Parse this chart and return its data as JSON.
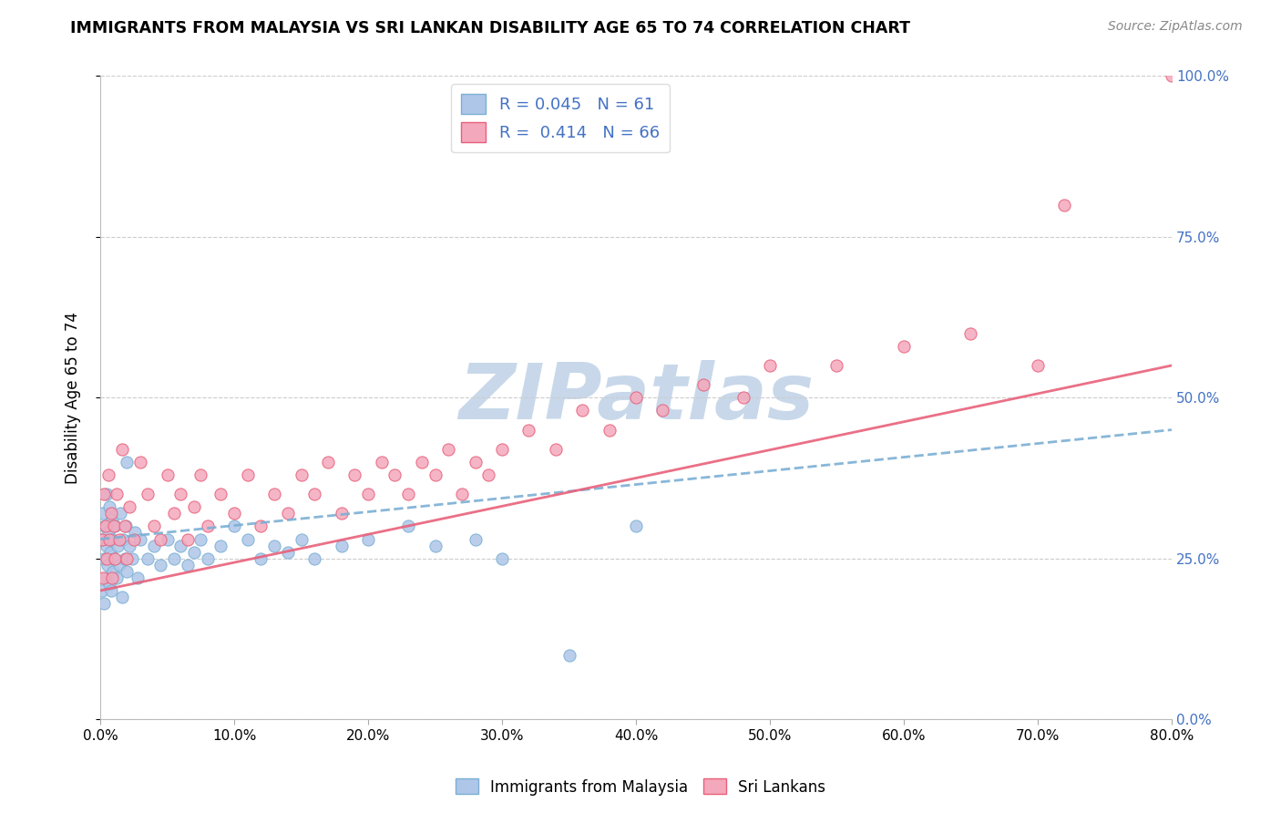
{
  "title": "IMMIGRANTS FROM MALAYSIA VS SRI LANKAN DISABILITY AGE 65 TO 74 CORRELATION CHART",
  "source": "Source: ZipAtlas.com",
  "xlim": [
    0.0,
    80.0
  ],
  "ylim": [
    0.0,
    100.0
  ],
  "ylabel": "Disability Age 65 to 74",
  "malaysia_R": 0.045,
  "malaysia_N": 61,
  "srilanka_R": 0.414,
  "srilanka_N": 66,
  "malaysia_color": "#aec6e8",
  "srilanka_color": "#f4a8bc",
  "malaysia_line_color": "#7bafd4",
  "srilanka_line_color": "#e8607a",
  "watermark": "ZIPatlas",
  "watermark_color": "#c8d8ea",
  "legend_label_malaysia": "Immigrants from Malaysia",
  "legend_label_srilanka": "Sri Lankans",
  "malaysia_x": [
    0.1,
    0.15,
    0.2,
    0.25,
    0.3,
    0.35,
    0.4,
    0.45,
    0.5,
    0.55,
    0.6,
    0.65,
    0.7,
    0.75,
    0.8,
    0.85,
    0.9,
    0.95,
    1.0,
    1.1,
    1.2,
    1.3,
    1.4,
    1.5,
    1.6,
    1.7,
    1.8,
    1.9,
    2.0,
    2.2,
    2.4,
    2.6,
    2.8,
    3.0,
    3.5,
    4.0,
    4.5,
    5.0,
    5.5,
    6.0,
    6.5,
    7.0,
    7.5,
    8.0,
    9.0,
    10.0,
    11.0,
    12.0,
    13.0,
    14.0,
    15.0,
    16.0,
    18.0,
    20.0,
    23.0,
    25.0,
    28.0,
    30.0,
    35.0,
    40.0,
    2.0
  ],
  "malaysia_y": [
    20.0,
    28.0,
    32.0,
    18.0,
    25.0,
    30.0,
    22.0,
    35.0,
    27.0,
    24.0,
    29.0,
    21.0,
    33.0,
    26.0,
    20.0,
    31.0,
    28.0,
    23.0,
    25.0,
    30.0,
    22.0,
    27.0,
    24.0,
    32.0,
    19.0,
    28.0,
    25.0,
    30.0,
    23.0,
    27.0,
    25.0,
    29.0,
    22.0,
    28.0,
    25.0,
    27.0,
    24.0,
    28.0,
    25.0,
    27.0,
    24.0,
    26.0,
    28.0,
    25.0,
    27.0,
    30.0,
    28.0,
    25.0,
    27.0,
    26.0,
    28.0,
    25.0,
    27.0,
    28.0,
    30.0,
    27.0,
    28.0,
    25.0,
    10.0,
    30.0,
    40.0
  ],
  "srilanka_x": [
    0.1,
    0.2,
    0.3,
    0.4,
    0.5,
    0.6,
    0.7,
    0.8,
    0.9,
    1.0,
    1.1,
    1.2,
    1.4,
    1.6,
    1.8,
    2.0,
    2.2,
    2.5,
    3.0,
    3.5,
    4.0,
    4.5,
    5.0,
    5.5,
    6.0,
    6.5,
    7.0,
    7.5,
    8.0,
    9.0,
    10.0,
    11.0,
    12.0,
    13.0,
    14.0,
    15.0,
    16.0,
    17.0,
    18.0,
    19.0,
    20.0,
    21.0,
    22.0,
    23.0,
    24.0,
    25.0,
    26.0,
    27.0,
    28.0,
    29.0,
    30.0,
    32.0,
    34.0,
    36.0,
    38.0,
    40.0,
    42.0,
    45.0,
    48.0,
    50.0,
    55.0,
    60.0,
    65.0,
    70.0,
    72.0,
    80.0
  ],
  "srilanka_y": [
    28.0,
    22.0,
    35.0,
    30.0,
    25.0,
    38.0,
    28.0,
    32.0,
    22.0,
    30.0,
    25.0,
    35.0,
    28.0,
    42.0,
    30.0,
    25.0,
    33.0,
    28.0,
    40.0,
    35.0,
    30.0,
    28.0,
    38.0,
    32.0,
    35.0,
    28.0,
    33.0,
    38.0,
    30.0,
    35.0,
    32.0,
    38.0,
    30.0,
    35.0,
    32.0,
    38.0,
    35.0,
    40.0,
    32.0,
    38.0,
    35.0,
    40.0,
    38.0,
    35.0,
    40.0,
    38.0,
    42.0,
    35.0,
    40.0,
    38.0,
    42.0,
    45.0,
    42.0,
    48.0,
    45.0,
    50.0,
    48.0,
    52.0,
    50.0,
    55.0,
    55.0,
    58.0,
    60.0,
    55.0,
    80.0,
    100.0
  ]
}
